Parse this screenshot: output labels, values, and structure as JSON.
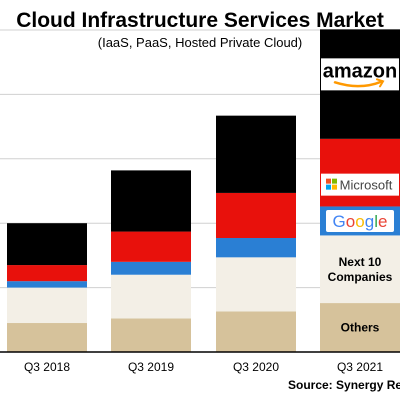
{
  "chart_data": {
    "type": "bar",
    "stacked": true,
    "title": "Cloud Infrastructure Services Market",
    "subtitle": "(IaaS, PaaS, Hosted Private Cloud)",
    "source": "Source: Synergy Research Group",
    "categories": [
      "Q3 2018",
      "Q3 2019",
      "Q3 2020",
      "Q3 2021"
    ],
    "ylim": [
      0,
      50
    ],
    "grid": true,
    "series": [
      {
        "name": "Others",
        "color": "#d6c29b",
        "values": [
          4.5,
          5.2,
          6.3,
          7.6
        ]
      },
      {
        "name": "Next 10 Companies",
        "color": "#f3efe6",
        "values": [
          5.5,
          6.8,
          8.4,
          10.5
        ]
      },
      {
        "name": "Google",
        "color": "#2a7fd4",
        "values": [
          1.0,
          2.0,
          3.0,
          4.5
        ]
      },
      {
        "name": "Microsoft",
        "color": "#e8110c",
        "values": [
          2.5,
          4.7,
          7.0,
          10.5
        ]
      },
      {
        "name": "Amazon",
        "color": "#000000",
        "values": [
          6.5,
          9.5,
          12.0,
          17.0
        ]
      }
    ],
    "segment_labels": {
      "Others": "Others",
      "Next 10 Companies": [
        "Next 10",
        "Companies"
      ]
    },
    "logos": {
      "amazon": "amazon",
      "microsoft": "Microsoft",
      "google": "Google"
    }
  }
}
